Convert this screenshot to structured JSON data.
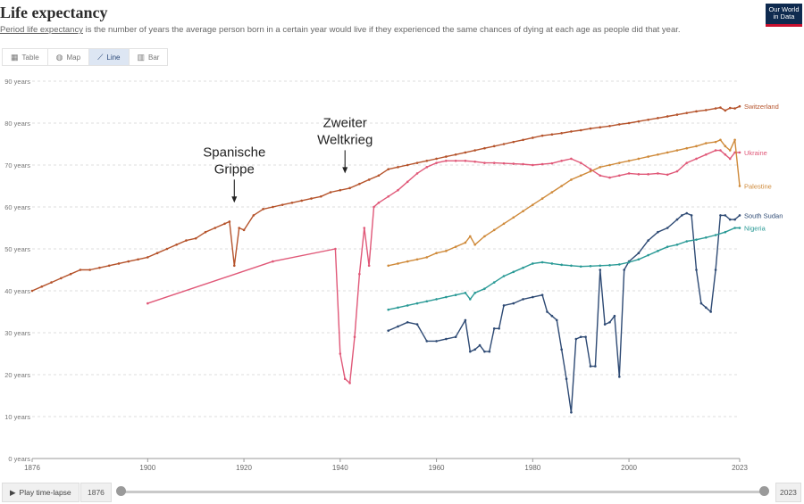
{
  "header": {
    "title": "Life expectancy",
    "subtitle_link": "Period life expectancy",
    "subtitle_rest": " is the number of years the average person born in a certain year would live if they experienced the same chances of dying at each age as people did that year.",
    "logo_line1": "Our World",
    "logo_line2": "in Data"
  },
  "tabs": [
    {
      "label": "Table",
      "icon": "table-icon"
    },
    {
      "label": "Map",
      "icon": "globe-icon"
    },
    {
      "label": "Line",
      "icon": "line-chart-icon",
      "active": true
    },
    {
      "label": "Bar",
      "icon": "bar-chart-icon"
    }
  ],
  "timeline": {
    "play_label": "Play time-lapse",
    "start_year": "1876",
    "end_year": "2023"
  },
  "chart_data": {
    "type": "line",
    "title": "Life expectancy",
    "xlim": [
      1876,
      2023
    ],
    "ylim": [
      0,
      90
    ],
    "x_ticks": [
      "1876",
      "1900",
      "1920",
      "1940",
      "1960",
      "1980",
      "2000",
      "2023"
    ],
    "y_ticks": [
      "0 years",
      "10 years",
      "20 years",
      "30 years",
      "40 years",
      "50 years",
      "60 years",
      "70 years",
      "80 years",
      "90 years"
    ],
    "grid": "horizontal-dashed",
    "annotations": [
      {
        "text_line1": "Spanische",
        "text_line2": "Grippe",
        "x": 1918,
        "y": 61
      },
      {
        "text_line1": "Zweiter",
        "text_line2": "Weltkrieg",
        "x": 1941,
        "y": 68
      }
    ],
    "series": [
      {
        "name": "Switzerland",
        "color": "#b5532b",
        "x": [
          1876,
          1878,
          1880,
          1882,
          1884,
          1886,
          1888,
          1890,
          1892,
          1894,
          1896,
          1898,
          1900,
          1902,
          1904,
          1906,
          1908,
          1910,
          1912,
          1914,
          1916,
          1917,
          1918,
          1919,
          1920,
          1922,
          1924,
          1926,
          1928,
          1930,
          1932,
          1934,
          1936,
          1938,
          1940,
          1942,
          1944,
          1946,
          1948,
          1950,
          1952,
          1954,
          1956,
          1958,
          1960,
          1962,
          1964,
          1966,
          1968,
          1970,
          1972,
          1974,
          1976,
          1978,
          1980,
          1982,
          1984,
          1986,
          1988,
          1990,
          1992,
          1994,
          1996,
          1998,
          2000,
          2002,
          2004,
          2006,
          2008,
          2010,
          2012,
          2014,
          2016,
          2018,
          2019,
          2020,
          2021,
          2022,
          2023
        ],
        "y": [
          40,
          41,
          42,
          43,
          44,
          45,
          45,
          45.5,
          46,
          46.5,
          47,
          47.5,
          48,
          49,
          50,
          51,
          52,
          52.5,
          54,
          55,
          56,
          56.5,
          46,
          55,
          54.5,
          58,
          59.5,
          60,
          60.5,
          61,
          61.5,
          62,
          62.5,
          63.5,
          64,
          64.5,
          65.5,
          66.5,
          67.5,
          69,
          69.5,
          70,
          70.5,
          71,
          71.5,
          72,
          72.5,
          73,
          73.5,
          74,
          74.5,
          75,
          75.5,
          76,
          76.5,
          77,
          77.3,
          77.6,
          78,
          78.3,
          78.7,
          79,
          79.3,
          79.7,
          80,
          80.4,
          80.8,
          81.2,
          81.6,
          82,
          82.4,
          82.8,
          83.1,
          83.5,
          83.7,
          83,
          83.6,
          83.5,
          84
        ]
      },
      {
        "name": "Ukraine",
        "color": "#e05878",
        "x": [
          1900,
          1926,
          1939,
          1940,
          1941,
          1942,
          1943,
          1944,
          1945,
          1946,
          1947,
          1948,
          1950,
          1952,
          1954,
          1956,
          1958,
          1960,
          1962,
          1964,
          1966,
          1968,
          1970,
          1972,
          1974,
          1976,
          1978,
          1980,
          1982,
          1984,
          1986,
          1988,
          1990,
          1992,
          1994,
          1996,
          1998,
          2000,
          2002,
          2004,
          2006,
          2008,
          2010,
          2012,
          2014,
          2016,
          2018,
          2019,
          2020,
          2021,
          2022,
          2023
        ],
        "y": [
          37,
          47,
          50,
          25,
          19,
          18,
          29,
          44,
          55,
          46,
          60,
          61,
          62.5,
          64,
          66,
          68,
          69.5,
          70.5,
          71,
          71,
          71,
          70.8,
          70.5,
          70.5,
          70.4,
          70.3,
          70.2,
          70,
          70.2,
          70.4,
          71,
          71.5,
          70.5,
          69,
          67.5,
          67,
          67.5,
          68,
          67.8,
          67.8,
          68,
          67.7,
          68.5,
          70.5,
          71.5,
          72.5,
          73.5,
          73.5,
          72.5,
          71.5,
          73,
          73
        ]
      },
      {
        "name": "Palestine",
        "color": "#cf8a3a",
        "x": [
          1950,
          1952,
          1954,
          1956,
          1958,
          1960,
          1962,
          1964,
          1966,
          1967,
          1968,
          1970,
          1972,
          1974,
          1976,
          1978,
          1980,
          1982,
          1984,
          1986,
          1988,
          1990,
          1992,
          1994,
          1996,
          1998,
          2000,
          2002,
          2004,
          2006,
          2008,
          2010,
          2012,
          2014,
          2016,
          2018,
          2019,
          2020,
          2021,
          2022,
          2023
        ],
        "y": [
          46,
          46.5,
          47,
          47.5,
          48,
          49,
          49.5,
          50.5,
          51.5,
          53,
          51,
          53,
          54.5,
          56,
          57.5,
          59,
          60.5,
          62,
          63.5,
          65,
          66.5,
          67.5,
          68.5,
          69.5,
          70,
          70.5,
          71,
          71.5,
          72,
          72.5,
          73,
          73.5,
          74,
          74.5,
          75.2,
          75.5,
          76,
          74.5,
          73.5,
          76,
          65
        ]
      },
      {
        "name": "South Sudan",
        "color": "#2e4a74",
        "x": [
          1950,
          1952,
          1954,
          1956,
          1958,
          1960,
          1962,
          1964,
          1966,
          1967,
          1968,
          1969,
          1970,
          1971,
          1972,
          1973,
          1974,
          1976,
          1978,
          1980,
          1982,
          1983,
          1984,
          1985,
          1986,
          1987,
          1988,
          1989,
          1990,
          1991,
          1992,
          1993,
          1994,
          1995,
          1996,
          1997,
          1998,
          1999,
          2000,
          2002,
          2004,
          2006,
          2008,
          2010,
          2011,
          2012,
          2013,
          2014,
          2015,
          2016,
          2017,
          2018,
          2019,
          2020,
          2021,
          2022,
          2023
        ],
        "y": [
          30.5,
          31.5,
          32.5,
          32,
          28,
          28,
          28.5,
          29,
          33,
          25.5,
          26,
          27,
          25.5,
          25.5,
          31,
          31,
          36.5,
          37,
          38,
          38.5,
          39,
          35,
          34,
          33,
          26,
          19,
          11,
          28.5,
          29,
          29,
          22,
          22,
          45,
          32,
          32.5,
          34,
          19.5,
          45,
          47,
          49,
          52,
          54,
          55,
          57,
          58,
          58.5,
          58,
          45,
          37,
          36,
          35,
          45,
          58,
          58,
          57,
          57,
          58
        ]
      },
      {
        "name": "Nigeria",
        "color": "#2a9a96",
        "x": [
          1950,
          1952,
          1954,
          1956,
          1958,
          1960,
          1962,
          1964,
          1966,
          1967,
          1968,
          1970,
          1972,
          1974,
          1976,
          1978,
          1980,
          1982,
          1984,
          1986,
          1988,
          1990,
          1992,
          1994,
          1996,
          1998,
          2000,
          2002,
          2004,
          2006,
          2008,
          2010,
          2012,
          2014,
          2016,
          2018,
          2020,
          2022,
          2023
        ],
        "y": [
          35.5,
          36,
          36.5,
          37,
          37.5,
          38,
          38.5,
          39,
          39.5,
          38,
          39.5,
          40.5,
          42,
          43.5,
          44.5,
          45.5,
          46.5,
          46.8,
          46.5,
          46.2,
          46,
          45.8,
          45.9,
          46,
          46.1,
          46.3,
          46.8,
          47.5,
          48.5,
          49.5,
          50.5,
          51,
          51.8,
          52.2,
          52.7,
          53.3,
          54,
          55,
          55
        ]
      }
    ]
  }
}
